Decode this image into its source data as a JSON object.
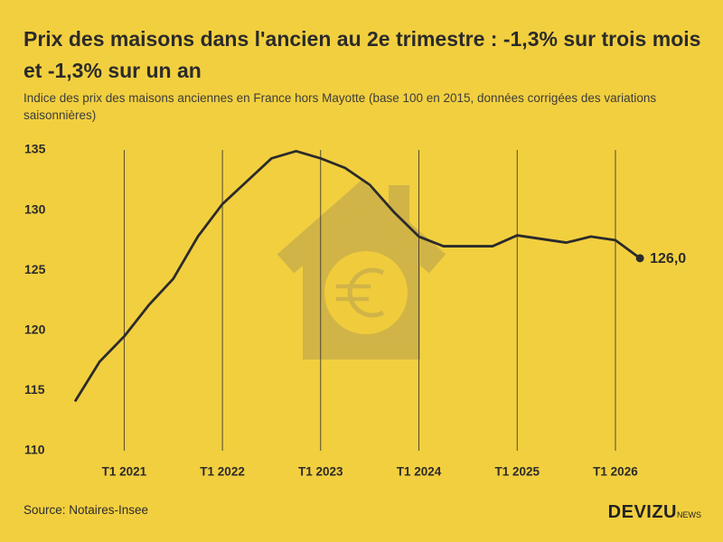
{
  "chart_data": {
    "type": "line",
    "title": "Prix des maisons dans l'ancien au 2e trimestre : -1,3% sur trois mois et -1,3% sur un an",
    "subtitle": "Indice des prix des maisons anciennes en France hors Mayotte (base 100 en 2015, données corrigées des variations saisonnières)",
    "source": "Source: Notaires-Insee",
    "brand": "DEVIZU",
    "brand_suffix": "NEWS",
    "categories": [
      null,
      null,
      "T1 2021",
      null,
      null,
      null,
      "T1 2022",
      null,
      null,
      null,
      "T1 2023",
      null,
      null,
      null,
      "T1 2024",
      null,
      null,
      null,
      "T1 2025",
      null,
      null,
      null,
      "T1 2026",
      null
    ],
    "values": [
      114.1,
      117.4,
      119.5,
      122.1,
      124.3,
      127.8,
      130.5,
      132.4,
      134.3,
      134.9,
      134.3,
      133.5,
      132.1,
      129.8,
      127.8,
      127.0,
      127.0,
      127.0,
      127.9,
      127.6,
      127.3,
      127.8,
      127.5,
      126.0
    ],
    "value_labels": [
      null,
      null,
      null,
      null,
      null,
      null,
      null,
      null,
      null,
      null,
      null,
      null,
      null,
      null,
      null,
      null,
      null,
      null,
      null,
      null,
      null,
      null,
      null,
      "126,0"
    ],
    "color": "#2b2b2b",
    "ylim": [
      110,
      135
    ],
    "yticks": [
      110,
      115,
      120,
      125,
      130,
      135
    ],
    "grid": "x"
  }
}
